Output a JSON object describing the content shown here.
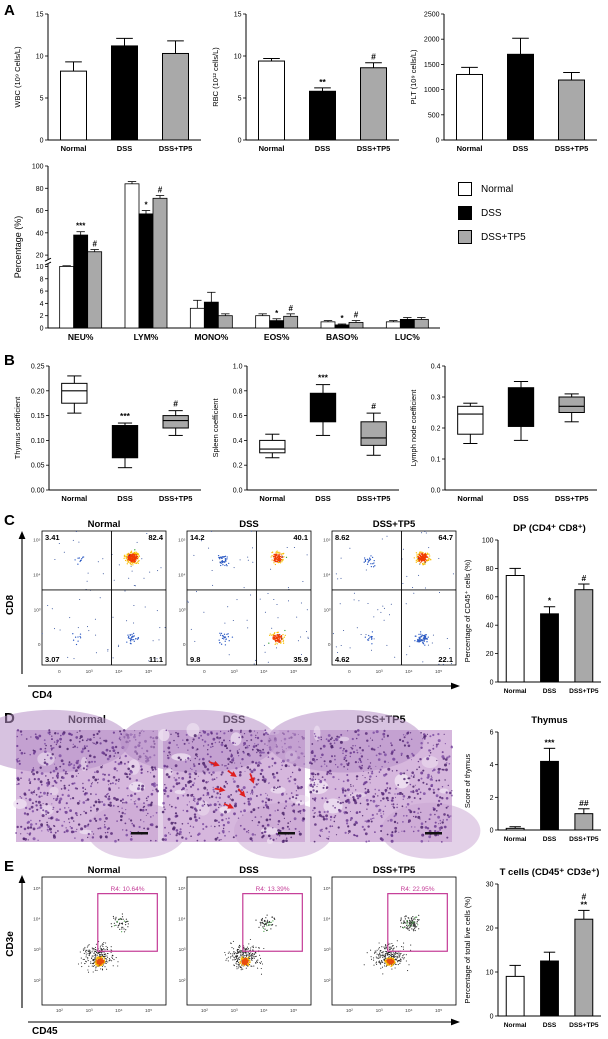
{
  "figure": {
    "panel_labels": [
      "A",
      "B",
      "C",
      "D",
      "E"
    ]
  },
  "groups": [
    "Normal",
    "DSS",
    "DSS+TP5"
  ],
  "group_colors": [
    "#ffffff",
    "#000000",
    "#a9a9a9"
  ],
  "accents": {
    "gate": "#c43a96",
    "arrow": "#e01e1e"
  },
  "axes": {
    "c": {
      "x": "CD4",
      "y": "CD8"
    },
    "e": {
      "x": "CD45",
      "y": "CD3e"
    }
  },
  "chart_data": [
    {
      "id": "wbc",
      "type": "bar",
      "ylabel": "WBC (10⁹ Cells/L)",
      "categories": [
        "Normal",
        "DSS",
        "DSS+TP5"
      ],
      "values": [
        8.2,
        11.2,
        10.3
      ],
      "errors": [
        1.1,
        0.9,
        1.5
      ],
      "sig": [
        "",
        "",
        ""
      ],
      "ylim": [
        0,
        15
      ],
      "yticks": [
        0,
        5,
        10,
        15
      ],
      "decimals": 0
    },
    {
      "id": "rbc",
      "type": "bar",
      "ylabel": "RBC (10¹² cells/L)",
      "categories": [
        "Normal",
        "DSS",
        "DSS+TP5"
      ],
      "values": [
        9.4,
        5.8,
        8.6
      ],
      "errors": [
        0.3,
        0.4,
        0.6
      ],
      "sig": [
        "",
        "**",
        "#"
      ],
      "ylim": [
        0,
        15
      ],
      "yticks": [
        0,
        5,
        10,
        15
      ],
      "decimals": 0
    },
    {
      "id": "plt",
      "type": "bar",
      "ylabel": "PLT (10⁹ cells/L)",
      "categories": [
        "Normal",
        "DSS",
        "DSS+TP5"
      ],
      "values": [
        1300,
        1700,
        1190
      ],
      "errors": [
        140,
        320,
        150
      ],
      "sig": [
        "",
        "",
        ""
      ],
      "ylim": [
        0,
        2500
      ],
      "yticks": [
        0,
        500,
        1000,
        1500,
        2000,
        2500
      ],
      "decimals": 0
    },
    {
      "id": "diff",
      "type": "grouped_bar_break",
      "ylabel": "Percentage (%)",
      "categories": [
        "NEU%",
        "LYM%",
        "MONO%",
        "EOS%",
        "BASO%",
        "LUC%"
      ],
      "series": [
        {
          "name": "Normal",
          "color": "#ffffff",
          "values": [
            10,
            84,
            3.2,
            2.0,
            1.0,
            1.0
          ],
          "errors": [
            0.6,
            2.0,
            1.3,
            0.3,
            0.2,
            0.2
          ],
          "sig": [
            "",
            "",
            "",
            "",
            "",
            ""
          ]
        },
        {
          "name": "DSS",
          "color": "#000000",
          "values": [
            38,
            57,
            4.2,
            1.2,
            0.5,
            1.4
          ],
          "errors": [
            3.0,
            3.0,
            1.6,
            0.3,
            0.15,
            0.3
          ],
          "sig": [
            "***",
            "*",
            "",
            "*",
            "*",
            ""
          ]
        },
        {
          "name": "DSS+TP5",
          "color": "#a9a9a9",
          "values": [
            23,
            71,
            2.0,
            1.9,
            0.9,
            1.4
          ],
          "errors": [
            2.0,
            2.5,
            0.3,
            0.4,
            0.3,
            0.3
          ],
          "sig": [
            "#",
            "#",
            "",
            "#",
            "#",
            ""
          ]
        }
      ],
      "yticks_low": [
        0,
        2,
        4,
        6,
        8,
        10
      ],
      "yticks_high": [
        20,
        40,
        60,
        80,
        100
      ],
      "legend": [
        "Normal",
        "DSS",
        "DSS+TP5"
      ]
    },
    {
      "id": "thymus_coef",
      "type": "box",
      "ylabel": "Thymus coefficient",
      "categories": [
        "Normal",
        "DSS",
        "DSS+TP5"
      ],
      "boxes": [
        [
          0.155,
          0.175,
          0.2,
          0.215,
          0.23
        ],
        [
          0.045,
          0.065,
          0.115,
          0.13,
          0.135
        ],
        [
          0.11,
          0.125,
          0.14,
          0.15,
          0.16
        ]
      ],
      "sig": [
        "",
        "***",
        "#"
      ],
      "ylim": [
        0,
        0.25
      ],
      "yticks": [
        0,
        0.05,
        0.1,
        0.15,
        0.2,
        0.25
      ],
      "decimals": 2
    },
    {
      "id": "spleen_coef",
      "type": "box",
      "ylabel": "Spleen coefficient",
      "categories": [
        "Normal",
        "DSS",
        "DSS+TP5"
      ],
      "boxes": [
        [
          0.26,
          0.3,
          0.33,
          0.4,
          0.45
        ],
        [
          0.44,
          0.55,
          0.62,
          0.78,
          0.85
        ],
        [
          0.28,
          0.36,
          0.42,
          0.55,
          0.62
        ]
      ],
      "sig": [
        "",
        "***",
        "#"
      ],
      "ylim": [
        0,
        1
      ],
      "yticks": [
        0,
        0.2,
        0.4,
        0.6,
        0.8,
        1
      ],
      "decimals": 1
    },
    {
      "id": "lymph_coef",
      "type": "box",
      "ylabel": "Lymph node coefficient",
      "categories": [
        "Normal",
        "DSS",
        "DSS+TP5"
      ],
      "boxes": [
        [
          0.15,
          0.18,
          0.245,
          0.27,
          0.28
        ],
        [
          0.16,
          0.205,
          0.3,
          0.33,
          0.35
        ],
        [
          0.22,
          0.25,
          0.27,
          0.3,
          0.31
        ]
      ],
      "sig": [
        "",
        "",
        ""
      ],
      "ylim": [
        0,
        0.4
      ],
      "yticks": [
        0,
        0.1,
        0.2,
        0.3,
        0.4
      ],
      "decimals": 1
    },
    {
      "id": "flow_c_normal",
      "type": "flow_quadrant",
      "title": "Normal",
      "quadrants": {
        "ul": "3.41",
        "ur": "82.4",
        "ll": "3.07",
        "lr": "11.1"
      },
      "xticks": [
        "0",
        "10³",
        "10⁴",
        "10⁵"
      ],
      "yticks": [
        "10⁵",
        "10⁴",
        "10³",
        "0"
      ]
    },
    {
      "id": "flow_c_dss",
      "type": "flow_quadrant",
      "title": "DSS",
      "quadrants": {
        "ul": "14.2",
        "ur": "40.1",
        "ll": "9.8",
        "lr": "35.9"
      },
      "xticks": [
        "0",
        "10³",
        "10⁴",
        "10⁵"
      ],
      "yticks": [
        "10⁵",
        "10⁴",
        "10³",
        "0"
      ]
    },
    {
      "id": "flow_c_tp5",
      "type": "flow_quadrant",
      "title": "DSS+TP5",
      "quadrants": {
        "ul": "8.62",
        "ur": "64.7",
        "ll": "4.62",
        "lr": "22.1"
      },
      "xticks": [
        "0",
        "10³",
        "10⁴",
        "10⁵"
      ],
      "yticks": [
        "10⁵",
        "10⁴",
        "10³",
        "0"
      ]
    },
    {
      "id": "dp",
      "type": "bar",
      "title": "DP (CD4⁺ CD8⁺)",
      "ylabel": "Percentage of CD45⁺ cells (%)",
      "categories": [
        "Normal",
        "DSS",
        "DSS+TP5"
      ],
      "values": [
        75,
        48,
        65
      ],
      "errors": [
        5,
        5,
        4
      ],
      "sig": [
        "",
        "*",
        "#"
      ],
      "ylim": [
        0,
        100
      ],
      "yticks": [
        0,
        20,
        40,
        60,
        80,
        100
      ],
      "decimals": 0
    },
    {
      "id": "hist_normal",
      "type": "histology",
      "title": "Normal",
      "arrows": 0
    },
    {
      "id": "hist_dss",
      "type": "histology",
      "title": "DSS",
      "arrows": 6
    },
    {
      "id": "hist_tp5",
      "type": "histology",
      "title": "DSS+TP5",
      "arrows": 0
    },
    {
      "id": "thymus_score",
      "type": "bar",
      "title": "Thymus",
      "ylabel": "Score of thymus",
      "categories": [
        "Normal",
        "DSS",
        "DSS+TP5"
      ],
      "values": [
        0.1,
        4.2,
        1.0
      ],
      "errors": [
        0.1,
        0.8,
        0.3
      ],
      "sig": [
        "",
        "***",
        "##"
      ],
      "ylim": [
        0,
        6
      ],
      "yticks": [
        0,
        2,
        4,
        6
      ],
      "decimals": 0
    },
    {
      "id": "flow_e_normal",
      "type": "flow_gate",
      "title": "Normal",
      "gate_label": "R4: 10.64%",
      "gate_pct": 10.64,
      "xticks": [
        "10²",
        "10³",
        "10⁴",
        "10⁵"
      ],
      "yticks": [
        "10⁵",
        "10⁴",
        "10³",
        "10²"
      ]
    },
    {
      "id": "flow_e_dss",
      "type": "flow_gate",
      "title": "DSS",
      "gate_label": "R4: 13.39%",
      "gate_pct": 13.39,
      "xticks": [
        "10²",
        "10³",
        "10⁴",
        "10⁵"
      ],
      "yticks": [
        "10⁵",
        "10⁴",
        "10³",
        "10²"
      ]
    },
    {
      "id": "flow_e_tp5",
      "type": "flow_gate",
      "title": "DSS+TP5",
      "gate_label": "R4: 22.95%",
      "gate_pct": 22.95,
      "xticks": [
        "10²",
        "10³",
        "10⁴",
        "10⁵"
      ],
      "yticks": [
        "10⁵",
        "10⁴",
        "10³",
        "10²"
      ]
    },
    {
      "id": "tcells",
      "type": "bar",
      "title": "T cells (CD45⁺ CD3e⁺)",
      "ylabel": "Percentage of total live cells (%)",
      "categories": [
        "Normal",
        "DSS",
        "DSS+TP5"
      ],
      "values": [
        9,
        12.5,
        22
      ],
      "errors": [
        2.5,
        2,
        2
      ],
      "sig": [
        "",
        "",
        "#|**"
      ],
      "ylim": [
        0,
        30
      ],
      "yticks": [
        0,
        10,
        20,
        30
      ],
      "decimals": 0
    }
  ]
}
